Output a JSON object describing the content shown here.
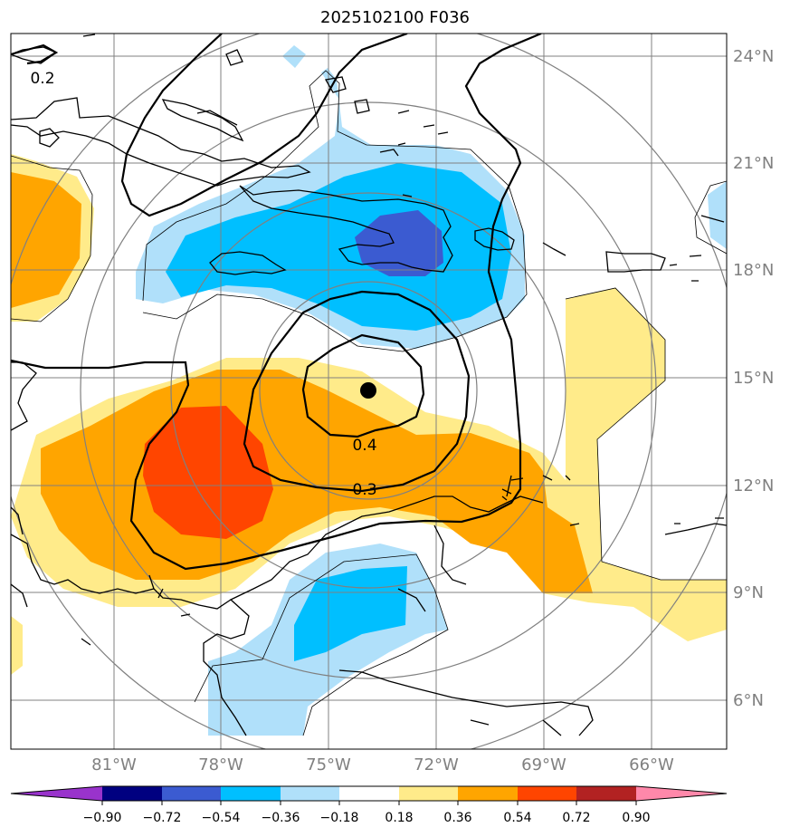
{
  "title": "2025102100 F036",
  "map": {
    "longitude_labels": [
      "81°W",
      "78°W",
      "75°W",
      "72°W",
      "69°W",
      "66°W"
    ],
    "latitude_labels": [
      "24°N",
      "21°N",
      "18°N",
      "15°N",
      "12°N",
      "9°N",
      "6°N"
    ],
    "contour_labels": [
      "0.2",
      "0.4",
      "0.3"
    ],
    "storm_center": {
      "lon": "73.9°W",
      "lat": "14.6°N"
    }
  },
  "colorbar": {
    "ticks": [
      "−0.90",
      "−0.72",
      "−0.54",
      "−0.36",
      "−0.18",
      "0.18",
      "0.36",
      "0.54",
      "0.72",
      "0.90"
    ],
    "colors": [
      "#9933cc",
      "#000080",
      "#3b5bd1",
      "#00bfff",
      "#b0e0fa",
      "#ffffff",
      "#ffeb8a",
      "#ffa500",
      "#ff4500",
      "#b22222",
      "#ff88aa"
    ]
  },
  "colors": {
    "neg_light": "#b0e0fa",
    "neg_mid": "#00bfff",
    "neg_dark": "#3b5bd1",
    "pos_light": "#ffeb8a",
    "pos_mid": "#ffa500",
    "pos_dark": "#ff4500",
    "grid": "#808080"
  }
}
